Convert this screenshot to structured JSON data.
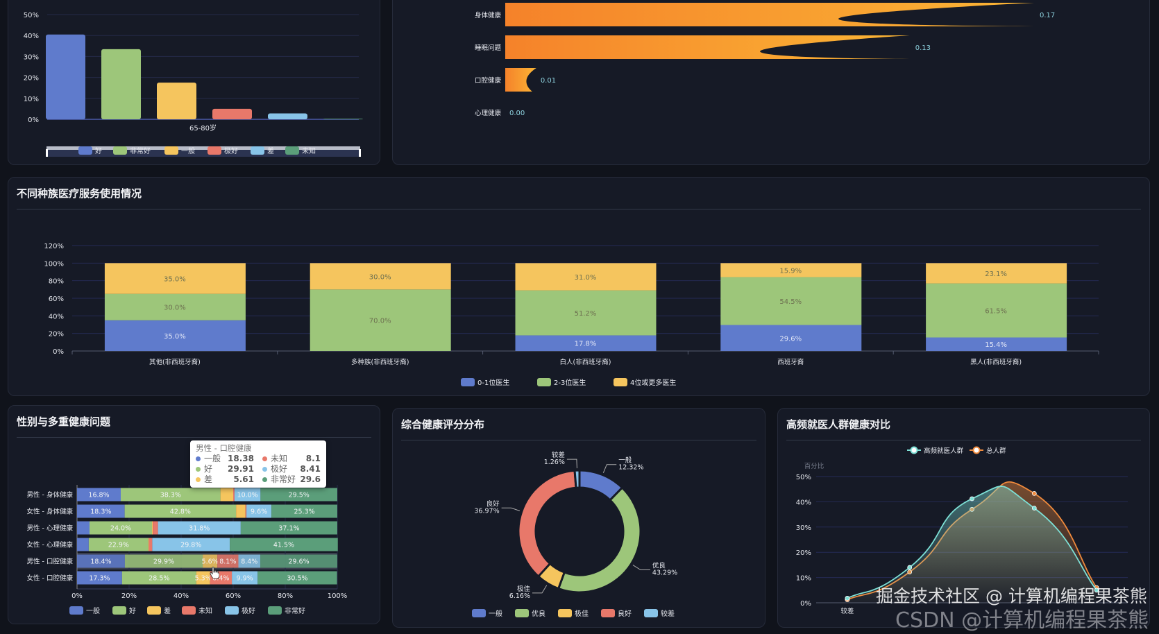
{
  "colors": {
    "blue": "#5f7bcc",
    "green": "#9dc67a",
    "yellow": "#f5c55e",
    "red": "#e8786a",
    "lightblue": "#88c4e8",
    "teal": "#5b9e7a",
    "orangeStart": "#f5822a",
    "orangeEnd": "#fbb535",
    "cyan": "#7de0d6",
    "orange": "#f08a3c"
  },
  "chart_data": [
    {
      "id": "age-health",
      "type": "bar",
      "categories": [
        "65-80岁"
      ],
      "series": [
        {
          "name": "好",
          "values": [
            40.5
          ]
        },
        {
          "name": "非常好",
          "values": [
            33.5
          ]
        },
        {
          "name": "一般",
          "values": [
            17.5
          ]
        },
        {
          "name": "极好",
          "values": [
            5.0
          ]
        },
        {
          "name": "差",
          "values": [
            2.8
          ]
        },
        {
          "name": "未知",
          "values": [
            0.3
          ]
        }
      ],
      "yticks": [
        "0%",
        "10%",
        "20%",
        "30%",
        "40%",
        "50%"
      ],
      "ylim": [
        0,
        50
      ],
      "grid": true,
      "legend_placement": "bottom",
      "has_data_zoom_slider": true
    },
    {
      "id": "health-issue-bars",
      "type": "bar",
      "orientation": "horizontal",
      "categories": [
        "身体健康",
        "睡眠问题",
        "口腔健康",
        "心理健康"
      ],
      "values": [
        0.17,
        0.13,
        0.01,
        0.0
      ],
      "value_labels": [
        "0.17",
        "0.13",
        "0.01",
        "0.00"
      ],
      "style": "pictorial-gradient"
    },
    {
      "id": "race-medical",
      "type": "bar",
      "stacked": true,
      "title": "不同种族医疗服务使用情况",
      "categories": [
        "其他(非西班牙裔)",
        "多种族(非西班牙裔)",
        "白人(非西班牙裔)",
        "西班牙裔",
        "黑人(非西班牙裔)"
      ],
      "series": [
        {
          "name": "0-1位医生",
          "values": [
            35.0,
            0.0,
            17.8,
            29.6,
            15.4
          ]
        },
        {
          "name": "2-3位医生",
          "values": [
            30.0,
            70.0,
            51.2,
            54.5,
            61.5
          ]
        },
        {
          "name": "4位或更多医生",
          "values": [
            35.0,
            30.0,
            31.0,
            15.9,
            23.1
          ]
        }
      ],
      "yticks": [
        "0%",
        "20%",
        "40%",
        "60%",
        "80%",
        "100%",
        "120%"
      ],
      "ylim": [
        0,
        120
      ],
      "grid": true,
      "legend_placement": "bottom"
    },
    {
      "id": "gender-health",
      "type": "bar",
      "orientation": "horizontal",
      "stacked": true,
      "title": "性别与多重健康问题",
      "categories": [
        "男性 - 身体健康",
        "女性 - 身体健康",
        "男性 - 心理健康",
        "女性 - 心理健康",
        "男性 - 口腔健康",
        "女性 - 口腔健康"
      ],
      "series": [
        {
          "name": "一般",
          "values": [
            16.8,
            18.3,
            4.8,
            4.5,
            18.38,
            17.3
          ]
        },
        {
          "name": "好",
          "values": [
            38.3,
            42.8,
            24.0,
            22.9,
            29.91,
            28.5
          ]
        },
        {
          "name": "差",
          "values": [
            4.9,
            3.6,
            0.3,
            0.2,
            5.61,
            5.3
          ]
        },
        {
          "name": "未知",
          "values": [
            0.5,
            0.4,
            2.0,
            1.3,
            8.1,
            8.4
          ]
        },
        {
          "name": "极好",
          "values": [
            10.0,
            9.6,
            31.8,
            29.8,
            8.41,
            9.9
          ]
        },
        {
          "name": "非常好",
          "values": [
            29.5,
            25.3,
            37.1,
            41.5,
            29.6,
            30.5
          ]
        }
      ],
      "xticks": [
        "0%",
        "20%",
        "40%",
        "60%",
        "80%",
        "100%"
      ],
      "xlim": [
        0,
        100
      ],
      "legend_placement": "bottom",
      "highlighted_category": "男性 - 口腔健康",
      "tooltip": {
        "title": "男性 - 口腔健康",
        "rows": [
          {
            "name": "一般",
            "value": "18.38"
          },
          {
            "name": "好",
            "value": "29.91"
          },
          {
            "name": "差",
            "value": "5.61"
          },
          {
            "name": "未知",
            "value": "8.1"
          },
          {
            "name": "极好",
            "value": "8.41"
          },
          {
            "name": "非常好",
            "value": "29.6"
          }
        ]
      }
    },
    {
      "id": "score-distribution",
      "type": "pie",
      "donut": true,
      "title": "综合健康评分分布",
      "slices": [
        {
          "name": "一般",
          "value": 12.32,
          "label": "12.32%"
        },
        {
          "name": "优良",
          "value": 43.29,
          "label": "43.29%"
        },
        {
          "name": "极佳",
          "value": 6.16,
          "label": "6.16%"
        },
        {
          "name": "良好",
          "value": 36.97,
          "label": "36.97%"
        },
        {
          "name": "较差",
          "value": 1.26,
          "label": "1.26%"
        }
      ],
      "legend_placement": "bottom"
    },
    {
      "id": "frequent-visitors",
      "type": "area",
      "smooth": true,
      "title": "高频就医人群健康对比",
      "ylabel": "百分比",
      "x": [
        "较差",
        "",
        "",
        "",
        ""
      ],
      "series": [
        {
          "name": "高频就医人群",
          "values": [
            1.8,
            14.0,
            41.2,
            37.5,
            5.0
          ]
        },
        {
          "name": "总人群",
          "values": [
            1.2,
            12.2,
            37.0,
            43.3,
            6.0
          ]
        }
      ],
      "yticks": [
        "0%",
        "10%",
        "20%",
        "30%",
        "40%",
        "50%"
      ],
      "ylim": [
        0,
        50
      ],
      "grid": true,
      "legend_placement": "top"
    }
  ],
  "watermark": {
    "line1": "掘金技术社区 @ 计算机编程果茶熊",
    "line2": "CSDN @计算机编程果茶熊"
  }
}
